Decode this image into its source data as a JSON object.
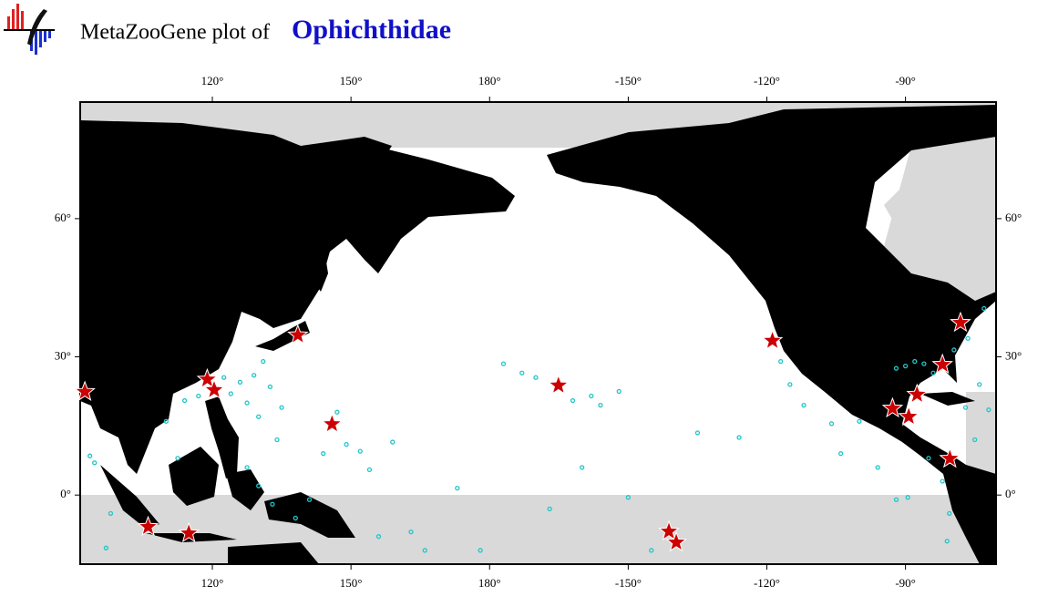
{
  "header": {
    "title_prefix": "MetaZooGene plot of",
    "taxon": "Ophichthidae"
  },
  "map_data": {
    "type": "map",
    "xlim": [
      91.4,
      -70.4
    ],
    "ylim": [
      -15,
      85.3
    ],
    "xticks": [
      {
        "value": 120,
        "label": "120°"
      },
      {
        "value": 150,
        "label": "150°"
      },
      {
        "value": 180,
        "label": "180°"
      },
      {
        "value": -150,
        "label": "-150°"
      },
      {
        "value": -120,
        "label": "-120°"
      },
      {
        "value": -90,
        "label": "-90°"
      }
    ],
    "yticks": [
      {
        "value": 0,
        "label": "0°"
      },
      {
        "value": 30,
        "label": "30°"
      },
      {
        "value": 60,
        "label": "60°"
      }
    ],
    "star_color": "#cc0000",
    "point_color": "#22c5c8",
    "stars": [
      {
        "lon": 92.4,
        "lat": 22.4
      },
      {
        "lon": 106.1,
        "lat": -6.9
      },
      {
        "lon": 114.9,
        "lat": -8.3
      },
      {
        "lon": 118.9,
        "lat": 25.1
      },
      {
        "lon": 120.4,
        "lat": 22.8
      },
      {
        "lon": 138.5,
        "lat": 34.7
      },
      {
        "lon": 145.9,
        "lat": 15.4
      },
      {
        "lon": -165.1,
        "lat": 23.8
      },
      {
        "lon": -141.2,
        "lat": -7.9
      },
      {
        "lon": -139.6,
        "lat": -10.3
      },
      {
        "lon": -118.8,
        "lat": 33.5
      },
      {
        "lon": -82.0,
        "lat": 28.3
      },
      {
        "lon": -87.5,
        "lat": 21.8
      },
      {
        "lon": -92.8,
        "lat": 18.8
      },
      {
        "lon": -89.3,
        "lat": 17.0
      },
      {
        "lon": -80.4,
        "lat": 7.9
      },
      {
        "lon": -78.1,
        "lat": 37.4
      }
    ],
    "points": [
      {
        "lon": 93.5,
        "lat": 8.5
      },
      {
        "lon": 94.5,
        "lat": 7.0
      },
      {
        "lon": 97.0,
        "lat": -11.5
      },
      {
        "lon": 98.0,
        "lat": -4.0
      },
      {
        "lon": 112.5,
        "lat": 8.0
      },
      {
        "lon": 110.0,
        "lat": 16.0
      },
      {
        "lon": 114.0,
        "lat": 20.5
      },
      {
        "lon": 117.0,
        "lat": 21.5
      },
      {
        "lon": 122.5,
        "lat": 25.5
      },
      {
        "lon": 124.0,
        "lat": 22.0
      },
      {
        "lon": 126.0,
        "lat": 24.5
      },
      {
        "lon": 127.5,
        "lat": 20.0
      },
      {
        "lon": 129.0,
        "lat": 26.0
      },
      {
        "lon": 130.0,
        "lat": 17.0
      },
      {
        "lon": 131.0,
        "lat": 29.0
      },
      {
        "lon": 132.5,
        "lat": 23.5
      },
      {
        "lon": 134.0,
        "lat": 12.0
      },
      {
        "lon": 135.0,
        "lat": 19.0
      },
      {
        "lon": 127.5,
        "lat": 6.0
      },
      {
        "lon": 130.0,
        "lat": 2.0
      },
      {
        "lon": 133.0,
        "lat": -2.0
      },
      {
        "lon": 138.0,
        "lat": -5.0
      },
      {
        "lon": 141.0,
        "lat": -1.0
      },
      {
        "lon": 144.0,
        "lat": 9.0
      },
      {
        "lon": 147.0,
        "lat": 18.0
      },
      {
        "lon": 149.0,
        "lat": 11.0
      },
      {
        "lon": 152.0,
        "lat": 9.5
      },
      {
        "lon": 154.0,
        "lat": 5.5
      },
      {
        "lon": 156.0,
        "lat": -9.0
      },
      {
        "lon": 159.0,
        "lat": 11.5
      },
      {
        "lon": 163.0,
        "lat": -8.0
      },
      {
        "lon": 166.0,
        "lat": -12.0
      },
      {
        "lon": 173.0,
        "lat": 1.5
      },
      {
        "lon": 178.0,
        "lat": -12.0
      },
      {
        "lon": -177.0,
        "lat": 28.5
      },
      {
        "lon": -173.0,
        "lat": 26.5
      },
      {
        "lon": -170.0,
        "lat": 25.5
      },
      {
        "lon": -167.0,
        "lat": -3.0
      },
      {
        "lon": -162.0,
        "lat": 20.5
      },
      {
        "lon": -158.0,
        "lat": 21.5
      },
      {
        "lon": -156.0,
        "lat": 19.5
      },
      {
        "lon": -152.0,
        "lat": 22.5
      },
      {
        "lon": -160.0,
        "lat": 6.0
      },
      {
        "lon": -150.0,
        "lat": -0.5
      },
      {
        "lon": -145.0,
        "lat": -12.0
      },
      {
        "lon": -135.0,
        "lat": 13.5
      },
      {
        "lon": -126.0,
        "lat": 12.5
      },
      {
        "lon": -117.0,
        "lat": 29.0
      },
      {
        "lon": -115.0,
        "lat": 24.0
      },
      {
        "lon": -112.0,
        "lat": 19.5
      },
      {
        "lon": -106.0,
        "lat": 15.5
      },
      {
        "lon": -104.0,
        "lat": 9.0
      },
      {
        "lon": -100.0,
        "lat": 16.0
      },
      {
        "lon": -96.0,
        "lat": 6.0
      },
      {
        "lon": -92.0,
        "lat": -1.0
      },
      {
        "lon": -89.5,
        "lat": -0.5
      },
      {
        "lon": -85.0,
        "lat": 8.0
      },
      {
        "lon": -82.0,
        "lat": 3.0
      },
      {
        "lon": -80.5,
        "lat": -4.0
      },
      {
        "lon": -81.0,
        "lat": -10.0
      },
      {
        "lon": -90.0,
        "lat": 28.0
      },
      {
        "lon": -86.0,
        "lat": 28.5
      },
      {
        "lon": -84.0,
        "lat": 26.5
      },
      {
        "lon": -92.0,
        "lat": 27.5
      },
      {
        "lon": -88.0,
        "lat": 29.0
      },
      {
        "lon": -79.5,
        "lat": 31.5
      },
      {
        "lon": -76.5,
        "lat": 34.0
      },
      {
        "lon": -73.0,
        "lat": 40.5
      },
      {
        "lon": -74.0,
        "lat": 24.0
      },
      {
        "lon": -77.0,
        "lat": 19.0
      },
      {
        "lon": -72.0,
        "lat": 18.5
      },
      {
        "lon": -75.0,
        "lat": 12.0
      }
    ]
  }
}
